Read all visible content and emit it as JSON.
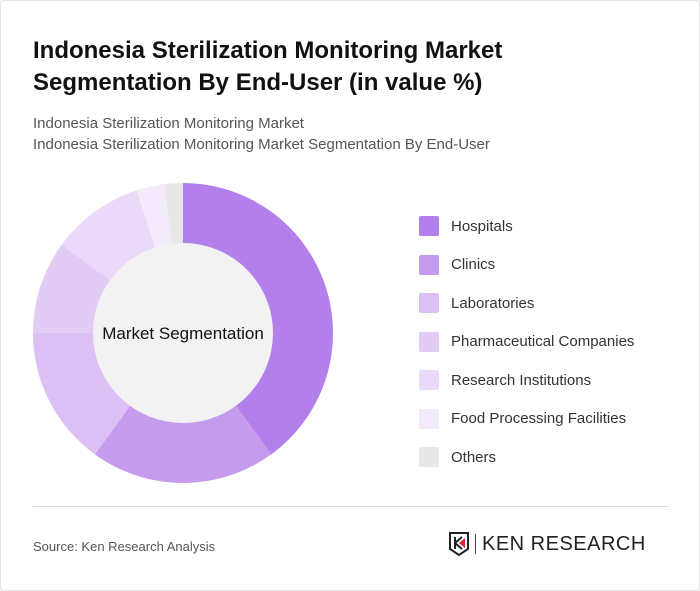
{
  "title": "Indonesia Sterilization Monitoring Market Segmentation By End-User (in value %)",
  "subtitle1": "Indonesia Sterilization Monitoring Market",
  "subtitle2": "Indonesia Sterilization Monitoring Market Segmentation By End-User",
  "source": "Source: Ken Research Analysis",
  "logo_text": "KEN RESEARCH",
  "chart_data": {
    "type": "pie",
    "variant": "donut",
    "center_label": "Market Segmentation",
    "legend_position": "right",
    "categories": [
      "Hospitals",
      "Clinics",
      "Laboratories",
      "Pharmaceutical Companies",
      "Research Institutions",
      "Food Processing Facilities",
      "Others"
    ],
    "values": [
      40,
      20,
      15,
      10,
      10,
      3,
      2
    ],
    "colors": [
      "#b37fea",
      "#c59bee",
      "#dbbff5",
      "#e2ccf6",
      "#ead9f8",
      "#f3eafc",
      "#e8e8e8"
    ]
  }
}
